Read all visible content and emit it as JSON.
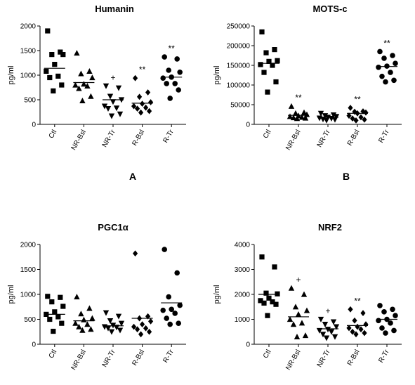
{
  "chart_data": [
    {
      "type": "scatter",
      "title": "Humanin",
      "ylabel": "pg/ml",
      "ylim": [
        0,
        2000
      ],
      "yticks": [
        0,
        500,
        1000,
        1500,
        2000
      ],
      "categories": [
        "Ctl",
        "NR-Bsl",
        "NR-Tr",
        "R-Bsl",
        "R-Tr"
      ],
      "markers": [
        "square",
        "triangle-up",
        "triangle-down",
        "diamond",
        "circle"
      ],
      "groups": [
        {
          "name": "Ctl",
          "values": [
            1900,
            1470,
            1420,
            1420,
            1220,
            1080,
            980,
            950,
            800,
            680
          ],
          "median": 1140,
          "annotation": ""
        },
        {
          "name": "NR-Bsl",
          "values": [
            1450,
            1080,
            1030,
            950,
            820,
            800,
            780,
            730,
            570,
            480
          ],
          "median": 850,
          "annotation": ""
        },
        {
          "name": "NR-Tr",
          "values": [
            780,
            740,
            570,
            500,
            460,
            370,
            330,
            320,
            210,
            170
          ],
          "median": 500,
          "annotation": "+"
        },
        {
          "name": "R-Bsl",
          "values": [
            940,
            650,
            560,
            450,
            420,
            370,
            340,
            320,
            270,
            240
          ],
          "median": 430,
          "annotation": "**"
        },
        {
          "name": "R-Tr",
          "values": [
            1370,
            1330,
            1100,
            1060,
            960,
            940,
            830,
            830,
            700,
            530
          ],
          "median": 960,
          "annotation": "**"
        }
      ]
    },
    {
      "type": "scatter",
      "title": "MOTS-c",
      "ylabel": "pg/ml",
      "ylim": [
        0,
        250000
      ],
      "yticks": [
        0,
        50000,
        100000,
        150000,
        200000,
        250000
      ],
      "categories": [
        "Ctl",
        "NR-Bsl",
        "NR-Tr",
        "R-Bsl",
        "R-Tr"
      ],
      "markers": [
        "square",
        "triangle-up",
        "triangle-down",
        "diamond",
        "circle"
      ],
      "groups": [
        {
          "name": "Ctl",
          "values": [
            235000,
            190000,
            182000,
            162000,
            160000,
            152000,
            150000,
            132000,
            108000,
            82000
          ],
          "median": 155000,
          "annotation": ""
        },
        {
          "name": "NR-Bsl",
          "values": [
            46000,
            30000,
            28000,
            25000,
            22000,
            20000,
            18000,
            17000,
            16000,
            15000
          ],
          "median": 23000,
          "annotation": "**"
        },
        {
          "name": "NR-Tr",
          "values": [
            28000,
            24000,
            22000,
            20000,
            18000,
            16000,
            15000,
            13000,
            12000,
            10000
          ],
          "median": 18000,
          "annotation": ""
        },
        {
          "name": "R-Bsl",
          "values": [
            42000,
            33000,
            32000,
            30000,
            28000,
            22000,
            18000,
            15000,
            12000,
            10000
          ],
          "median": 28000,
          "annotation": "**"
        },
        {
          "name": "R-Tr",
          "values": [
            185000,
            175000,
            168000,
            155000,
            148000,
            145000,
            132000,
            122000,
            112000,
            108000
          ],
          "median": 147000,
          "annotation": "**"
        }
      ]
    },
    {
      "type": "scatter",
      "title": "PGC1α",
      "ylabel": "pg/ml",
      "ylim": [
        0,
        2000
      ],
      "yticks": [
        0,
        500,
        1000,
        1500,
        2000
      ],
      "categories": [
        "Ctl",
        "NR-Bsl",
        "NR-Tr",
        "R-Bsl",
        "R-Tr"
      ],
      "markers": [
        "square",
        "triangle-up",
        "triangle-down",
        "diamond",
        "circle"
      ],
      "groups": [
        {
          "name": "Ctl",
          "values": [
            960,
            940,
            850,
            760,
            650,
            600,
            550,
            500,
            420,
            260
          ],
          "median": 600,
          "annotation": ""
        },
        {
          "name": "NR-Bsl",
          "values": [
            950,
            720,
            610,
            520,
            490,
            420,
            400,
            350,
            300,
            280
          ],
          "median": 470,
          "annotation": ""
        },
        {
          "name": "NR-Tr",
          "values": [
            630,
            560,
            470,
            420,
            380,
            350,
            340,
            320,
            280,
            250
          ],
          "median": 370,
          "annotation": ""
        },
        {
          "name": "R-Bsl",
          "values": [
            1820,
            560,
            520,
            460,
            400,
            350,
            320,
            300,
            250,
            200
          ],
          "median": 520,
          "annotation": ""
        },
        {
          "name": "R-Tr",
          "values": [
            1900,
            1430,
            950,
            780,
            700,
            680,
            620,
            520,
            420,
            400
          ],
          "median": 830,
          "annotation": ""
        }
      ]
    },
    {
      "type": "scatter",
      "title": "NRF2",
      "ylabel": "pg/ml",
      "ylim": [
        0,
        4000
      ],
      "yticks": [
        0,
        1000,
        2000,
        3000,
        4000
      ],
      "categories": [
        "Ctl",
        "NR-Bsl",
        "NR-Tr",
        "R-Bsl",
        "R-Tr"
      ],
      "markers": [
        "square",
        "triangle-up",
        "triangle-down",
        "diamond",
        "circle"
      ],
      "groups": [
        {
          "name": "Ctl",
          "values": [
            3500,
            3100,
            2050,
            2020,
            1850,
            1750,
            1700,
            1650,
            1600,
            1150
          ],
          "median": 2000,
          "annotation": ""
        },
        {
          "name": "NR-Bsl",
          "values": [
            2250,
            2000,
            1500,
            1350,
            1200,
            1000,
            850,
            800,
            350,
            300
          ],
          "median": 1100,
          "annotation": "+"
        },
        {
          "name": "NR-Tr",
          "values": [
            1000,
            900,
            800,
            700,
            600,
            550,
            500,
            400,
            300,
            250
          ],
          "median": 620,
          "annotation": "+"
        },
        {
          "name": "R-Bsl",
          "values": [
            1400,
            1250,
            950,
            800,
            700,
            650,
            600,
            500,
            450,
            400
          ],
          "median": 750,
          "annotation": "**"
        },
        {
          "name": "R-Tr",
          "values": [
            1550,
            1400,
            1300,
            1150,
            1000,
            950,
            850,
            650,
            550,
            450
          ],
          "median": 1000,
          "annotation": ""
        }
      ]
    }
  ],
  "panel_labels": [
    "A",
    "B"
  ]
}
